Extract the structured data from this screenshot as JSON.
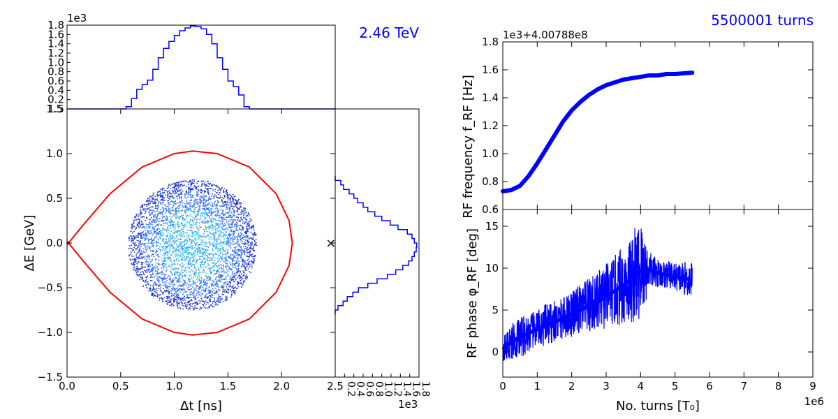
{
  "annotations": {
    "energy": "2.46 TeV",
    "turns": "5500001 turns"
  },
  "colors": {
    "separatrix": "#ff0000",
    "histogram": "#0000ff",
    "series": "#0000ff",
    "annotation": "#0000ff"
  },
  "chart_data": [
    {
      "type": "scatter",
      "panel": "longitudinal phase space",
      "xlabel": "Δt [ns]",
      "ylabel": "ΔE [GeV]",
      "xlim": [
        0.0,
        2.5
      ],
      "ylim": [
        -1.5,
        1.5
      ],
      "x_ticks": [
        "0.0",
        "0.5",
        "1.0",
        "1.5",
        "2.0",
        "2.5"
      ],
      "y_ticks": [
        "−1.5",
        "−1.0",
        "−0.5",
        "0.0",
        "0.5",
        "1.0",
        "1.5"
      ],
      "bunch": {
        "center_dt": 1.17,
        "center_dE": -0.02,
        "radius_dt": 0.6,
        "radius_dE": 0.73
      },
      "separatrix": [
        [
          0.0,
          -0.02
        ],
        [
          0.15,
          0.2
        ],
        [
          0.4,
          0.55
        ],
        [
          0.7,
          0.85
        ],
        [
          1.0,
          1.0
        ],
        [
          1.17,
          1.03
        ],
        [
          1.4,
          1.0
        ],
        [
          1.7,
          0.85
        ],
        [
          1.95,
          0.55
        ],
        [
          2.07,
          0.25
        ],
        [
          2.1,
          0.0
        ],
        [
          2.07,
          -0.25
        ],
        [
          1.95,
          -0.55
        ],
        [
          1.7,
          -0.85
        ],
        [
          1.4,
          -1.0
        ],
        [
          1.17,
          -1.03
        ],
        [
          1.0,
          -1.0
        ],
        [
          0.7,
          -0.85
        ],
        [
          0.4,
          -0.55
        ],
        [
          0.15,
          -0.2
        ],
        [
          0.0,
          0.02
        ]
      ],
      "unstable_fixed_point": {
        "x": 2.46,
        "y": 0.0,
        "marker": "×"
      }
    },
    {
      "type": "bar",
      "panel": "Δt profile histogram",
      "multiplier": "1e3",
      "ylim": [
        0,
        1.8
      ],
      "y_ticks": [
        "0.2",
        "0.4",
        "0.6",
        "0.8",
        "1.0",
        "1.2",
        "1.4",
        "1.6",
        "1.8"
      ],
      "x": [
        0.5,
        0.55,
        0.6,
        0.65,
        0.7,
        0.75,
        0.8,
        0.85,
        0.9,
        0.95,
        1.0,
        1.05,
        1.1,
        1.15,
        1.2,
        1.25,
        1.3,
        1.35,
        1.4,
        1.45,
        1.5,
        1.55,
        1.6,
        1.65,
        1.7,
        1.75,
        1.8
      ],
      "values": [
        0.0,
        0.05,
        0.22,
        0.42,
        0.52,
        0.62,
        0.85,
        1.1,
        1.3,
        1.45,
        1.58,
        1.68,
        1.74,
        1.78,
        1.77,
        1.72,
        1.6,
        1.4,
        1.1,
        0.85,
        0.6,
        0.48,
        0.3,
        0.05,
        0.0,
        0.0,
        0.0
      ]
    },
    {
      "type": "bar",
      "panel": "ΔE profile histogram",
      "multiplier": "1e3",
      "xlim": [
        0,
        1.8
      ],
      "x_ticks": [
        "0.2",
        "0.4",
        "0.6",
        "0.8",
        "1.0",
        "1.2",
        "1.4",
        "1.6",
        "1.8"
      ],
      "y": [
        0.75,
        0.7,
        0.65,
        0.6,
        0.55,
        0.5,
        0.45,
        0.4,
        0.35,
        0.3,
        0.25,
        0.2,
        0.15,
        0.1,
        0.05,
        0.0,
        -0.05,
        -0.1,
        -0.15,
        -0.2,
        -0.25,
        -0.3,
        -0.35,
        -0.4,
        -0.45,
        -0.5,
        -0.55,
        -0.6,
        -0.65,
        -0.7,
        -0.75
      ],
      "values": [
        0.0,
        0.12,
        0.18,
        0.3,
        0.4,
        0.48,
        0.6,
        0.7,
        0.85,
        1.0,
        1.18,
        1.35,
        1.55,
        1.65,
        1.7,
        1.75,
        1.74,
        1.7,
        1.65,
        1.58,
        1.45,
        1.3,
        1.12,
        0.9,
        0.7,
        0.5,
        0.38,
        0.26,
        0.17,
        0.06,
        0.0
      ]
    },
    {
      "type": "line",
      "panel": "RF frequency",
      "ylabel": "RF frequency f_RF [Hz]",
      "offset_label": "1e3+4.00788e8",
      "xlim": [
        0,
        9
      ],
      "ylim": [
        0.6,
        1.8
      ],
      "y_ticks": [
        "0.6",
        "0.8",
        "1.0",
        "1.2",
        "1.4",
        "1.6",
        "1.8"
      ],
      "x": [
        0.0,
        0.25,
        0.5,
        0.75,
        1.0,
        1.25,
        1.5,
        1.75,
        2.0,
        2.25,
        2.5,
        2.75,
        3.0,
        3.25,
        3.5,
        3.75,
        4.0,
        4.25,
        4.5,
        4.75,
        5.0,
        5.25,
        5.5
      ],
      "values": [
        0.73,
        0.74,
        0.77,
        0.84,
        0.93,
        1.03,
        1.13,
        1.23,
        1.31,
        1.37,
        1.42,
        1.46,
        1.49,
        1.51,
        1.53,
        1.54,
        1.55,
        1.56,
        1.56,
        1.57,
        1.57,
        1.575,
        1.58
      ]
    },
    {
      "type": "line",
      "panel": "RF phase",
      "xlabel": "No. turns [T₀]",
      "ylabel": "RF phase φ_RF [deg]",
      "x_multiplier": "1e6",
      "xlim": [
        0,
        9
      ],
      "ylim": [
        -3,
        17
      ],
      "x_ticks": [
        "0",
        "1",
        "2",
        "3",
        "4",
        "5",
        "6",
        "7",
        "8",
        "9"
      ],
      "y_ticks": [
        "0",
        "5",
        "10",
        "15"
      ],
      "x": [
        0.0,
        0.25,
        0.5,
        0.75,
        1.0,
        1.25,
        1.5,
        1.75,
        2.0,
        2.25,
        2.5,
        2.75,
        3.0,
        3.25,
        3.5,
        3.75,
        4.0,
        4.25,
        4.5,
        4.75,
        5.0,
        5.25,
        5.5
      ],
      "values": [
        0.3,
        1.2,
        1.8,
        2.2,
        2.8,
        3.2,
        3.6,
        4.0,
        4.6,
        5.0,
        5.5,
        6.0,
        6.6,
        7.3,
        8.0,
        8.8,
        9.7,
        9.8,
        9.4,
        9.2,
        9.0,
        8.8,
        8.6
      ],
      "spread": [
        1.0,
        1.6,
        1.8,
        1.6,
        1.6,
        1.8,
        1.8,
        1.8,
        2.0,
        2.2,
        2.4,
        2.6,
        2.8,
        3.0,
        3.5,
        4.0,
        4.5,
        1.6,
        1.2,
        1.2,
        1.2,
        1.4,
        1.6
      ]
    }
  ]
}
